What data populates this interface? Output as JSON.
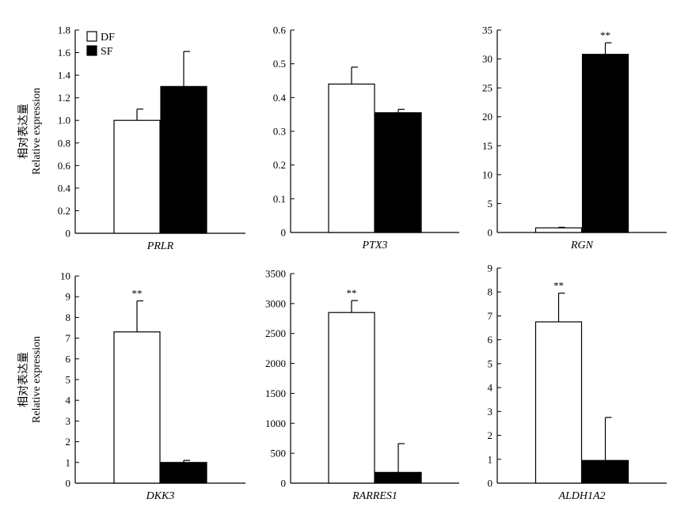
{
  "figure": {
    "ylabel_cn": "相对表达量",
    "ylabel_en": "Relative expression",
    "legend": [
      {
        "label": "DF",
        "color": "#ffffff"
      },
      {
        "label": "SF",
        "color": "#000000"
      }
    ]
  },
  "chart_data": [
    {
      "type": "bar",
      "title": "",
      "xlabel": "PRLR",
      "ylabel": "相对表达量 Relative expression",
      "categories": [
        "DF",
        "SF"
      ],
      "ylim": [
        0,
        1.8
      ],
      "yticks": [
        "0",
        "0.2",
        "0.4",
        "0.6",
        "0.8",
        "1.0",
        "1.2",
        "1.4",
        "1.6",
        "1.8"
      ],
      "values": [
        1.0,
        1.3
      ],
      "errors": [
        0.1,
        0.31
      ],
      "significance": [
        "",
        ""
      ]
    },
    {
      "type": "bar",
      "title": "",
      "xlabel": "PTX3",
      "ylabel": "",
      "categories": [
        "DF",
        "SF"
      ],
      "ylim": [
        0,
        0.6
      ],
      "yticks": [
        "0",
        "0.1",
        "0.2",
        "0.3",
        "0.4",
        "0.5",
        "0.6"
      ],
      "values": [
        0.44,
        0.355
      ],
      "errors": [
        0.05,
        0.01
      ],
      "significance": [
        "",
        ""
      ]
    },
    {
      "type": "bar",
      "title": "",
      "xlabel": "RGN",
      "ylabel": "",
      "categories": [
        "DF",
        "SF"
      ],
      "ylim": [
        0,
        35
      ],
      "yticks": [
        "0",
        "5",
        "10",
        "15",
        "20",
        "25",
        "30",
        "35"
      ],
      "values": [
        0.8,
        30.8
      ],
      "errors": [
        0.1,
        2.0
      ],
      "significance": [
        "",
        "**"
      ]
    },
    {
      "type": "bar",
      "title": "",
      "xlabel": "DKK3",
      "ylabel": "相对表达量 Relative expression",
      "categories": [
        "DF",
        "SF"
      ],
      "ylim": [
        0,
        10
      ],
      "yticks": [
        "0",
        "1",
        "2",
        "3",
        "4",
        "5",
        "6",
        "7",
        "8",
        "9",
        "10"
      ],
      "values": [
        7.3,
        1.0
      ],
      "errors": [
        1.5,
        0.1
      ],
      "significance": [
        "**",
        ""
      ]
    },
    {
      "type": "bar",
      "title": "",
      "xlabel": "RARRES1",
      "ylabel": "",
      "categories": [
        "DF",
        "SF"
      ],
      "ylim": [
        0,
        3500
      ],
      "yticks": [
        "0",
        "500",
        "1000",
        "1500",
        "2000",
        "2500",
        "3000",
        "3500"
      ],
      "values": [
        2850,
        180
      ],
      "errors": [
        200,
        480
      ],
      "significance": [
        "**",
        ""
      ]
    },
    {
      "type": "bar",
      "title": "",
      "xlabel": "ALDH1A2",
      "ylabel": "",
      "categories": [
        "DF",
        "SF"
      ],
      "ylim": [
        0,
        9
      ],
      "yticks": [
        "0",
        "1",
        "2",
        "3",
        "4",
        "5",
        "6",
        "7",
        "8",
        "9"
      ],
      "values": [
        6.75,
        0.95
      ],
      "errors": [
        1.2,
        1.8
      ],
      "significance": [
        "**",
        ""
      ]
    }
  ]
}
